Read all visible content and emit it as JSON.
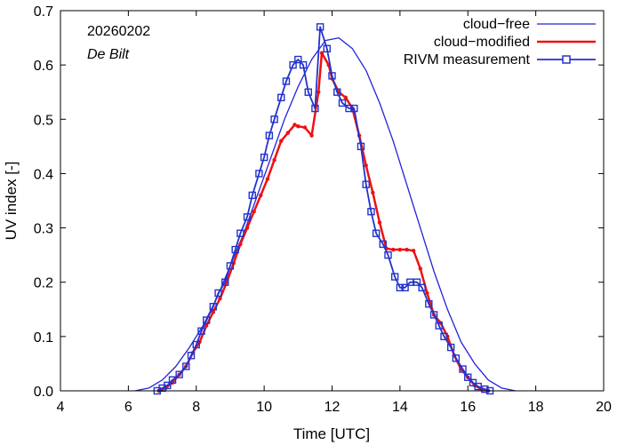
{
  "chart_data": {
    "type": "line",
    "title": "",
    "xlabel": "Time  [UTC]",
    "ylabel": "UV index  [-]",
    "xlim": [
      4,
      20
    ],
    "ylim": [
      0,
      0.7
    ],
    "xticks": [
      4,
      6,
      8,
      10,
      12,
      14,
      16,
      18,
      20
    ],
    "yticks": [
      0.0,
      0.1,
      0.2,
      0.3,
      0.4,
      0.5,
      0.6,
      0.7
    ],
    "xtick_labels": [
      "4",
      "6",
      "8",
      "10",
      "12",
      "14",
      "16",
      "18",
      "20"
    ],
    "ytick_labels": [
      "0.0",
      "0.1",
      "0.2",
      "0.3",
      "0.4",
      "0.5",
      "0.6",
      "0.7"
    ],
    "annotations": {
      "date": "20260202",
      "location": "De Bilt"
    },
    "legend_position": "top-right",
    "series": [
      {
        "name": "cloud−free",
        "color": "#2222dd",
        "style": "line",
        "x": [
          6.2,
          6.6,
          7.0,
          7.4,
          7.8,
          8.2,
          8.6,
          9.0,
          9.4,
          9.8,
          10.2,
          10.6,
          11.0,
          11.4,
          11.8,
          12.2,
          12.6,
          13.0,
          13.4,
          13.8,
          14.2,
          14.6,
          15.0,
          15.4,
          15.8,
          16.2,
          16.6,
          17.0,
          17.4
        ],
        "y": [
          0.0,
          0.005,
          0.02,
          0.045,
          0.08,
          0.12,
          0.17,
          0.23,
          0.29,
          0.36,
          0.43,
          0.5,
          0.56,
          0.61,
          0.645,
          0.65,
          0.63,
          0.59,
          0.53,
          0.46,
          0.38,
          0.3,
          0.22,
          0.15,
          0.09,
          0.05,
          0.02,
          0.005,
          0.0
        ]
      },
      {
        "name": "cloud−modified",
        "color": "#ee1111",
        "style": "line+dots",
        "x": [
          6.9,
          7.1,
          7.3,
          7.5,
          7.7,
          7.9,
          8.1,
          8.3,
          8.5,
          8.7,
          8.9,
          9.1,
          9.3,
          9.5,
          9.7,
          9.9,
          10.1,
          10.3,
          10.5,
          10.7,
          10.9,
          11.0,
          11.2,
          11.4,
          11.6,
          11.7,
          11.9,
          12.0,
          12.2,
          12.4,
          12.6,
          12.8,
          13.0,
          13.2,
          13.4,
          13.6,
          13.8,
          14.0,
          14.2,
          14.4,
          14.6,
          14.8,
          15.0,
          15.2,
          15.4,
          15.6,
          15.8,
          16.0,
          16.2,
          16.4,
          16.6
        ],
        "y": [
          0.0,
          0.005,
          0.015,
          0.03,
          0.045,
          0.07,
          0.09,
          0.12,
          0.145,
          0.17,
          0.2,
          0.235,
          0.27,
          0.3,
          0.33,
          0.36,
          0.39,
          0.425,
          0.46,
          0.475,
          0.49,
          0.487,
          0.485,
          0.47,
          0.55,
          0.622,
          0.6,
          0.575,
          0.55,
          0.54,
          0.52,
          0.47,
          0.415,
          0.365,
          0.31,
          0.262,
          0.26,
          0.26,
          0.26,
          0.258,
          0.225,
          0.18,
          0.14,
          0.125,
          0.1,
          0.065,
          0.04,
          0.025,
          0.01,
          0.003,
          0.0
        ]
      },
      {
        "name": "RIVM measurement",
        "color": "#2233cc",
        "style": "line+squares",
        "x": [
          6.85,
          7.0,
          7.15,
          7.3,
          7.5,
          7.7,
          7.85,
          8.0,
          8.15,
          8.3,
          8.5,
          8.65,
          8.85,
          9.0,
          9.15,
          9.3,
          9.5,
          9.65,
          9.85,
          10.0,
          10.15,
          10.3,
          10.5,
          10.65,
          10.85,
          11.0,
          11.15,
          11.3,
          11.5,
          11.65,
          11.85,
          12.0,
          12.15,
          12.3,
          12.5,
          12.65,
          12.85,
          13.0,
          13.15,
          13.3,
          13.5,
          13.65,
          13.85,
          14.0,
          14.15,
          14.3,
          14.5,
          14.65,
          14.85,
          15.0,
          15.15,
          15.3,
          15.5,
          15.65,
          15.85,
          16.0,
          16.15,
          16.3,
          16.5,
          16.65
        ],
        "y": [
          0.0,
          0.005,
          0.01,
          0.02,
          0.03,
          0.045,
          0.065,
          0.085,
          0.11,
          0.13,
          0.155,
          0.18,
          0.2,
          0.23,
          0.26,
          0.29,
          0.32,
          0.36,
          0.4,
          0.43,
          0.47,
          0.5,
          0.54,
          0.57,
          0.6,
          0.61,
          0.6,
          0.55,
          0.52,
          0.67,
          0.63,
          0.58,
          0.55,
          0.53,
          0.52,
          0.52,
          0.45,
          0.38,
          0.33,
          0.29,
          0.27,
          0.25,
          0.21,
          0.19,
          0.19,
          0.2,
          0.2,
          0.19,
          0.16,
          0.14,
          0.12,
          0.1,
          0.08,
          0.06,
          0.04,
          0.025,
          0.015,
          0.008,
          0.003,
          0.0
        ]
      }
    ]
  }
}
